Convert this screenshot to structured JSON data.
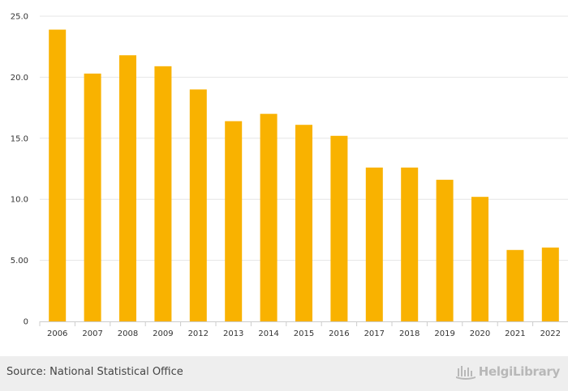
{
  "chart_data": {
    "type": "bar",
    "categories": [
      "2006",
      "2007",
      "2008",
      "2009",
      "2012",
      "2013",
      "2014",
      "2015",
      "2016",
      "2017",
      "2018",
      "2019",
      "2020",
      "2021",
      "2022"
    ],
    "values": [
      23.9,
      20.3,
      21.8,
      20.9,
      19.0,
      16.4,
      17.0,
      16.1,
      15.2,
      12.6,
      12.6,
      11.6,
      10.2,
      5.85,
      6.05
    ],
    "yticks": [
      "0",
      "5.00",
      "10.0",
      "15.0",
      "20.0",
      "25.0"
    ],
    "ylim": [
      0,
      25
    ],
    "bar_color": "#f9b200",
    "grid": true
  },
  "footer": {
    "source": "Source: National Statistical Office",
    "brand": "HelgiLibrary",
    "brand_icon": "helgi-library-logo-icon"
  },
  "colors": {
    "footer_bg": "#eeeeee",
    "gridline": "#e6e6e6"
  }
}
